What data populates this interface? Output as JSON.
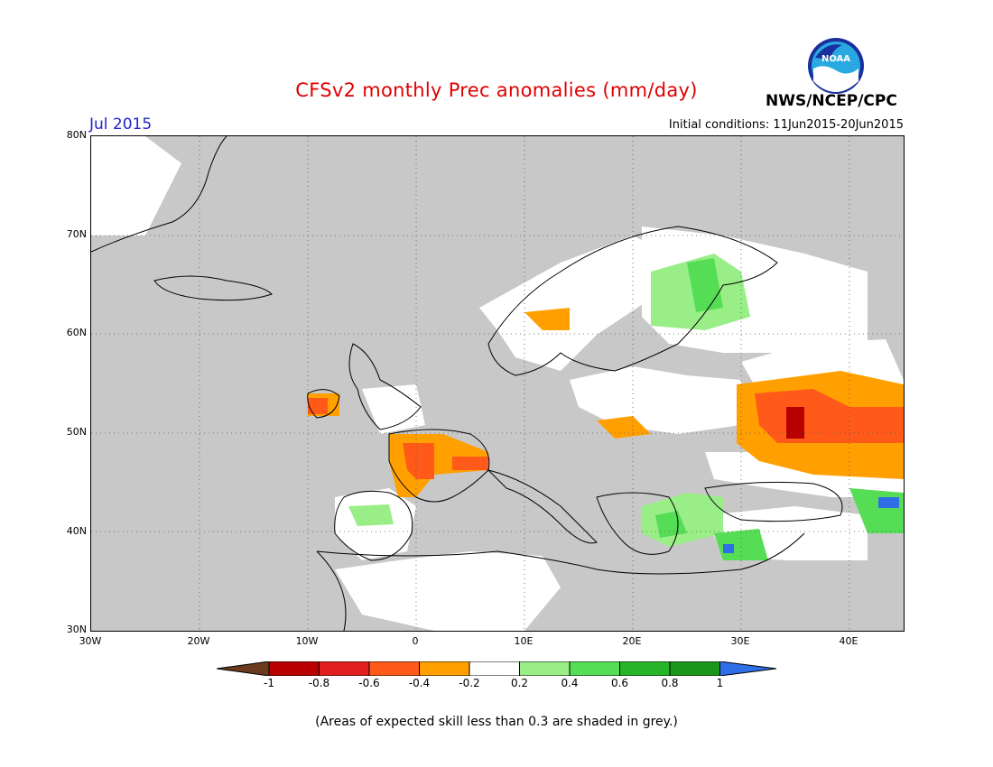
{
  "header": {
    "title": "CFSv2 monthly Prec anomalies (mm/day)",
    "agency": "NWS/NCEP/CPC",
    "month": "Jul 2015",
    "initial_conditions": "Initial conditions: 11Jun2015-20Jun2015",
    "logo_text": "NOAA"
  },
  "map": {
    "lat_labels": [
      "80N",
      "70N",
      "60N",
      "50N",
      "40N",
      "30N"
    ],
    "lon_labels": [
      "30W",
      "20W",
      "10W",
      "0",
      "10E",
      "20E",
      "30E",
      "40E"
    ],
    "lon_range": [
      -30,
      45
    ],
    "lat_range": [
      30,
      80
    ],
    "background_color": "#c8c8c8",
    "land_white_color": "#ffffff"
  },
  "colorbar": {
    "labels": [
      "-1",
      "-0.8",
      "-0.6",
      "-0.4",
      "-0.2",
      "0.2",
      "0.4",
      "0.6",
      "0.8",
      "1"
    ],
    "colors": [
      "#6b3a1f",
      "#b80000",
      "#e21f1f",
      "#ff5a1a",
      "#ffa000",
      "#ffffff",
      "#99ee88",
      "#55dd55",
      "#28b428",
      "#1a961a",
      "#2e6ee6"
    ]
  },
  "footnote": "(Areas of expected skill less than 0.3 are shaded in grey.)"
}
